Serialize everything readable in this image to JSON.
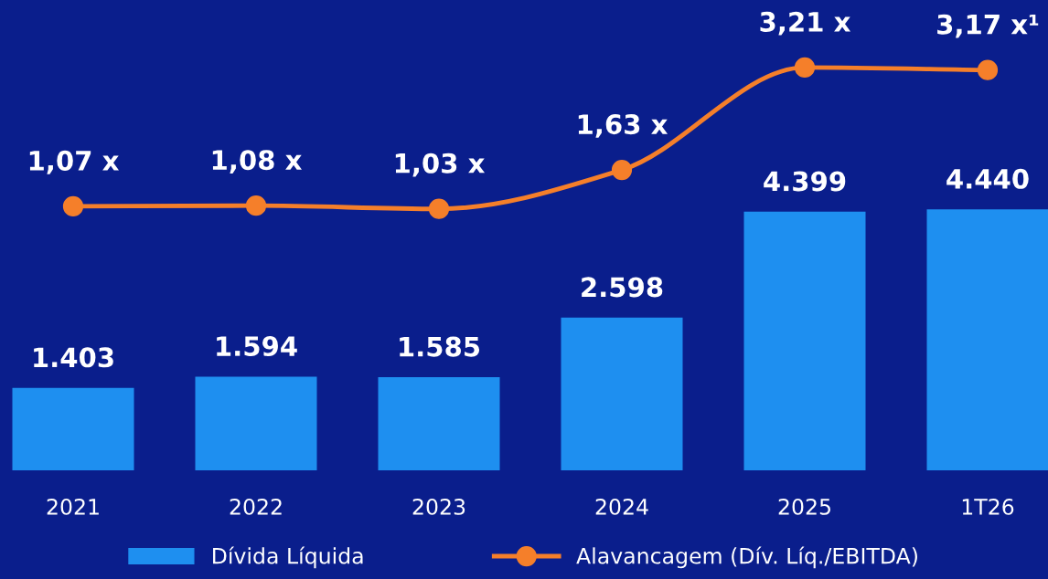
{
  "chart_data": {
    "type": "bar",
    "categories": [
      "2021",
      "2022",
      "2023",
      "2024",
      "2025",
      "1T26"
    ],
    "series": [
      {
        "name": "Dívida Líquida",
        "color": "#1e8ff0",
        "values": [
          1403,
          1594,
          1585,
          2598,
          4399,
          4440
        ],
        "value_labels": [
          "1.403",
          "1.594",
          "1.585",
          "2.598",
          "4.399",
          "4.440"
        ]
      },
      {
        "name": "Alavancagem (Dív. Líq./EBITDA)",
        "type": "line",
        "axis": "y2",
        "color": "#f57f2a",
        "values": [
          1.07,
          1.08,
          1.03,
          1.63,
          3.21,
          3.17
        ],
        "value_labels": [
          "1,07 x",
          "1,08 x",
          "1,03 x",
          "1,63 x",
          "3,21 x",
          "3,17 x¹"
        ]
      }
    ],
    "ylim": [
      0,
      8000
    ],
    "y2lim": [
      -3,
      4.25
    ],
    "tick_labels": "x",
    "marker": "circle",
    "line_style": "solid",
    "legend": "bottom",
    "grid": false
  }
}
